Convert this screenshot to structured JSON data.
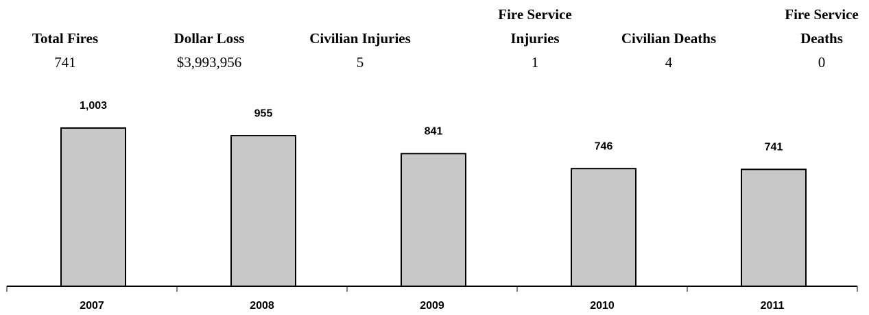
{
  "stats": [
    {
      "label": "Total Fires",
      "value": "741"
    },
    {
      "label": "Dollar Loss",
      "value": "$3,993,956"
    },
    {
      "label": "Civilian Injuries",
      "value": "5"
    },
    {
      "label": "Fire Service Injuries",
      "value": "1"
    },
    {
      "label": "Civilian Deaths",
      "value": "4"
    },
    {
      "label": "Fire Service Deaths",
      "value": "0"
    }
  ],
  "chart_data": {
    "type": "bar",
    "categories": [
      "2007",
      "2008",
      "2009",
      "2010",
      "2011"
    ],
    "values": [
      1003,
      955,
      841,
      746,
      741
    ],
    "value_labels": [
      "1,003",
      "955",
      "841",
      "746",
      "741"
    ],
    "color": "#c8c8c8"
  }
}
